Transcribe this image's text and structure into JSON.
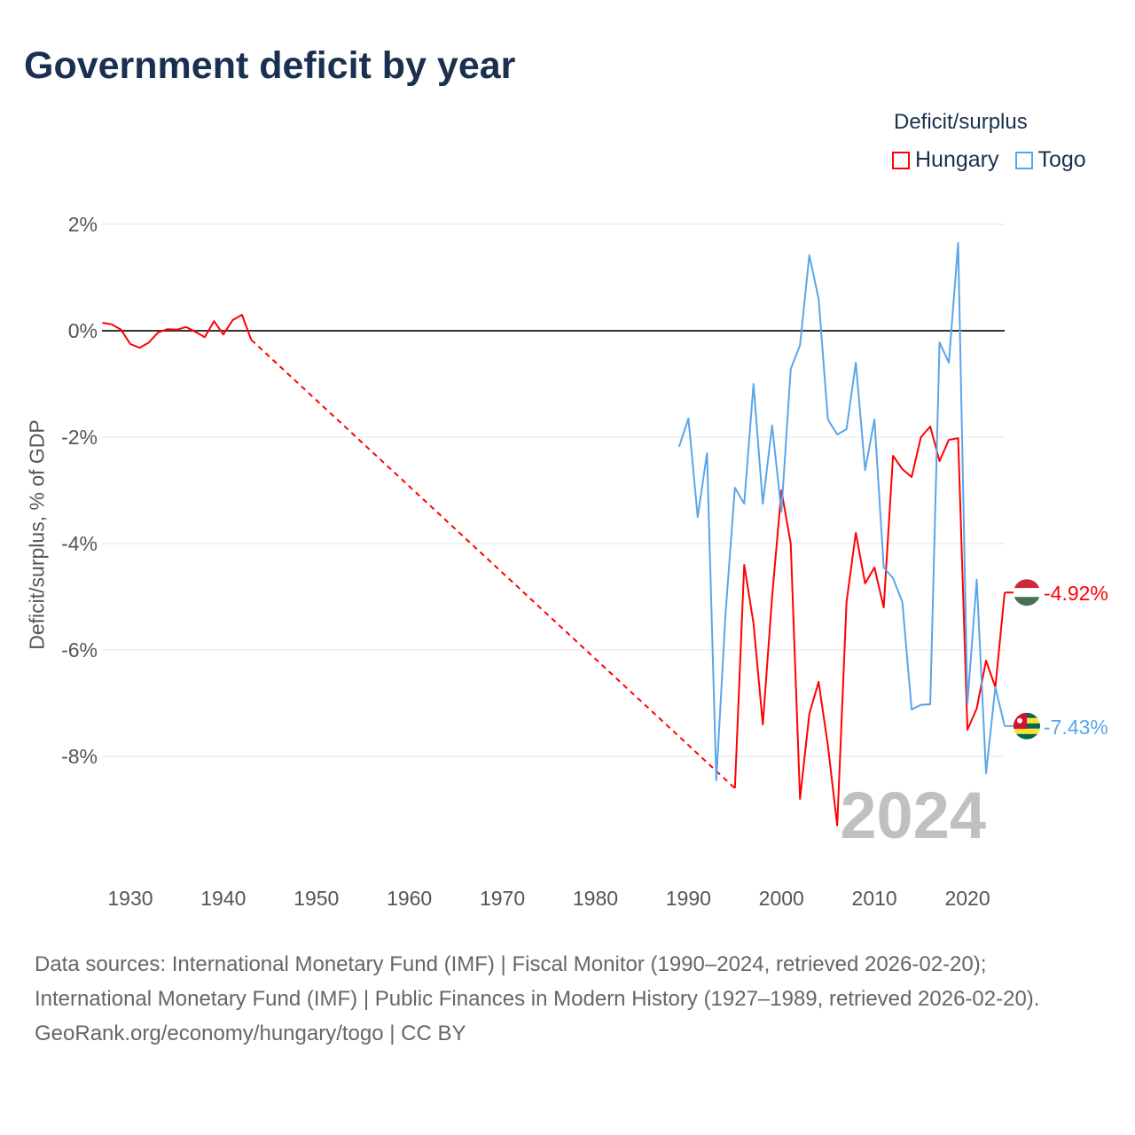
{
  "chart_data": {
    "type": "line",
    "title": "Government deficit by year",
    "ylabel": "Deficit/surplus, % of GDP",
    "xlabel": "",
    "legend_title": "Deficit/surplus",
    "legend_placement": "top-right",
    "xlim": [
      1927,
      2024
    ],
    "ylim": [
      -10,
      2
    ],
    "x_ticks": [
      1930,
      1940,
      1950,
      1960,
      1970,
      1980,
      1990,
      2000,
      2010,
      2020
    ],
    "y_ticks": [
      2,
      0,
      -2,
      -4,
      -6,
      -8
    ],
    "y_tick_labels": [
      "2%",
      "0%",
      "-2%",
      "-4%",
      "-6%",
      "-8%"
    ],
    "year_watermark": "2024",
    "series": [
      {
        "name": "Hungary",
        "color": "#ff0000",
        "end_label": "-4.92%",
        "flag": "hungary-flag",
        "points": [
          [
            1927,
            0.15
          ],
          [
            1928,
            0.12
          ],
          [
            1929,
            0.02
          ],
          [
            1930,
            -0.25
          ],
          [
            1931,
            -0.32
          ],
          [
            1932,
            -0.22
          ],
          [
            1933,
            -0.03
          ],
          [
            1934,
            0.03
          ],
          [
            1935,
            0.02
          ],
          [
            1936,
            0.07
          ],
          [
            1937,
            -0.02
          ],
          [
            1938,
            -0.12
          ],
          [
            1939,
            0.18
          ],
          [
            1940,
            -0.07
          ],
          [
            1941,
            0.2
          ],
          [
            1942,
            0.3
          ],
          [
            1943,
            -0.17
          ],
          [
            1995,
            -8.6
          ],
          [
            1996,
            -4.4
          ],
          [
            1997,
            -5.5
          ],
          [
            1998,
            -7.4
          ],
          [
            1999,
            -5.0
          ],
          [
            2000,
            -3.0
          ],
          [
            2001,
            -4.0
          ],
          [
            2002,
            -8.8
          ],
          [
            2003,
            -7.2
          ],
          [
            2004,
            -6.6
          ],
          [
            2005,
            -7.8
          ],
          [
            2006,
            -9.3
          ],
          [
            2007,
            -5.1
          ],
          [
            2008,
            -3.8
          ],
          [
            2009,
            -4.75
          ],
          [
            2010,
            -4.45
          ],
          [
            2011,
            -5.2
          ],
          [
            2012,
            -2.35
          ],
          [
            2013,
            -2.6
          ],
          [
            2014,
            -2.75
          ],
          [
            2015,
            -2.0
          ],
          [
            2016,
            -1.8
          ],
          [
            2017,
            -2.45
          ],
          [
            2018,
            -2.05
          ],
          [
            2019,
            -2.02
          ],
          [
            2020,
            -7.5
          ],
          [
            2021,
            -7.1
          ],
          [
            2022,
            -6.2
          ],
          [
            2023,
            -6.7
          ],
          [
            2024,
            -4.92
          ]
        ],
        "gap": [
          1943,
          1995
        ]
      },
      {
        "name": "Togo",
        "color": "#5aa5ea",
        "end_label": "-7.43%",
        "flag": "togo-flag",
        "points": [
          [
            1989,
            -2.18
          ],
          [
            1990,
            -1.65
          ],
          [
            1991,
            -3.5
          ],
          [
            1992,
            -2.3
          ],
          [
            1993,
            -8.45
          ],
          [
            1994,
            -5.3
          ],
          [
            1995,
            -2.95
          ],
          [
            1996,
            -3.25
          ],
          [
            1997,
            -1.0
          ],
          [
            1998,
            -3.25
          ],
          [
            1999,
            -1.78
          ],
          [
            2000,
            -3.4
          ],
          [
            2001,
            -0.72
          ],
          [
            2002,
            -0.27
          ],
          [
            2003,
            1.42
          ],
          [
            2004,
            0.6
          ],
          [
            2005,
            -1.67
          ],
          [
            2006,
            -1.95
          ],
          [
            2007,
            -1.85
          ],
          [
            2008,
            -0.6
          ],
          [
            2009,
            -2.62
          ],
          [
            2010,
            -1.67
          ],
          [
            2011,
            -4.45
          ],
          [
            2012,
            -4.65
          ],
          [
            2013,
            -5.1
          ],
          [
            2014,
            -7.12
          ],
          [
            2015,
            -7.03
          ],
          [
            2016,
            -7.02
          ],
          [
            2017,
            -0.22
          ],
          [
            2018,
            -0.6
          ],
          [
            2019,
            1.65
          ],
          [
            2020,
            -7.0
          ],
          [
            2021,
            -4.68
          ],
          [
            2022,
            -8.32
          ],
          [
            2023,
            -6.7
          ],
          [
            2024,
            -7.43
          ]
        ]
      }
    ]
  },
  "footer": {
    "sources": "Data sources: International Monetary Fund (IMF) | Fiscal Monitor (1990–2024, retrieved 2026-02-20); International Monetary Fund (IMF) | Public Finances in Modern History (1927–1989, retrieved 2026-02-20).",
    "credit": "GeoRank.org/economy/hungary/togo | CC BY"
  }
}
